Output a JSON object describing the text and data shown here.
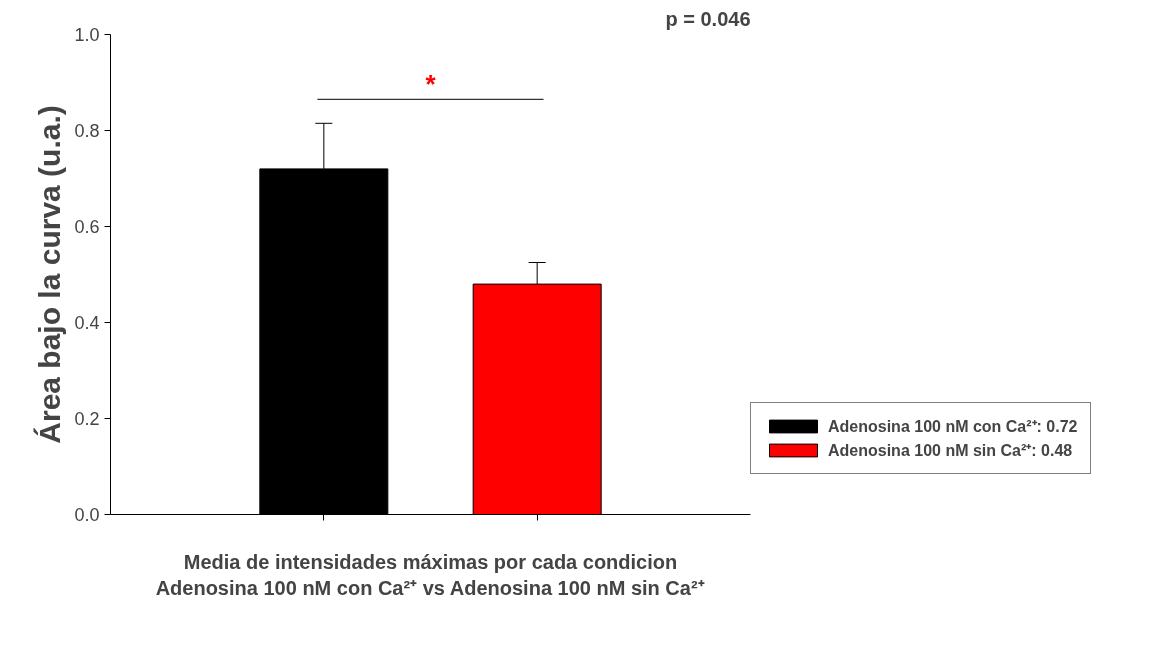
{
  "chart_data": {
    "type": "bar",
    "xlabel": "Media de intensidades máximas por cada condicion\nAdenosina 100 nM con Ca²⁺ vs Adenosina 100 nM sin Ca²⁺",
    "ylabel": "Área bajo la curva (u.a.)",
    "categories": [
      null,
      null
    ],
    "series": [
      {
        "name": "Adenosina 100 nM con Ca²⁺: 0.72",
        "color": "#000000",
        "values": [
          0.72,
          null
        ],
        "errors": [
          0.095,
          null
        ]
      },
      {
        "name": "Adenosina 100 nM sin Ca²⁺: 0.48",
        "color": "#ff0000",
        "values": [
          null,
          0.48
        ],
        "errors": [
          null,
          0.045
        ]
      }
    ],
    "ylim": [
      0,
      1
    ],
    "yticks": [
      {
        "value": 0,
        "label": "0.0"
      },
      {
        "value": 0.2,
        "label": "0.2"
      },
      {
        "value": 0.4,
        "label": "0.4"
      },
      {
        "value": 0.6,
        "label": "0.6"
      },
      {
        "value": 0.8,
        "label": "0.8"
      },
      {
        "value": 1,
        "label": "1.0"
      }
    ],
    "tick_labels": "y",
    "grid": false,
    "legend": "right",
    "annotations": [
      "*",
      "p = 0.046"
    ]
  }
}
